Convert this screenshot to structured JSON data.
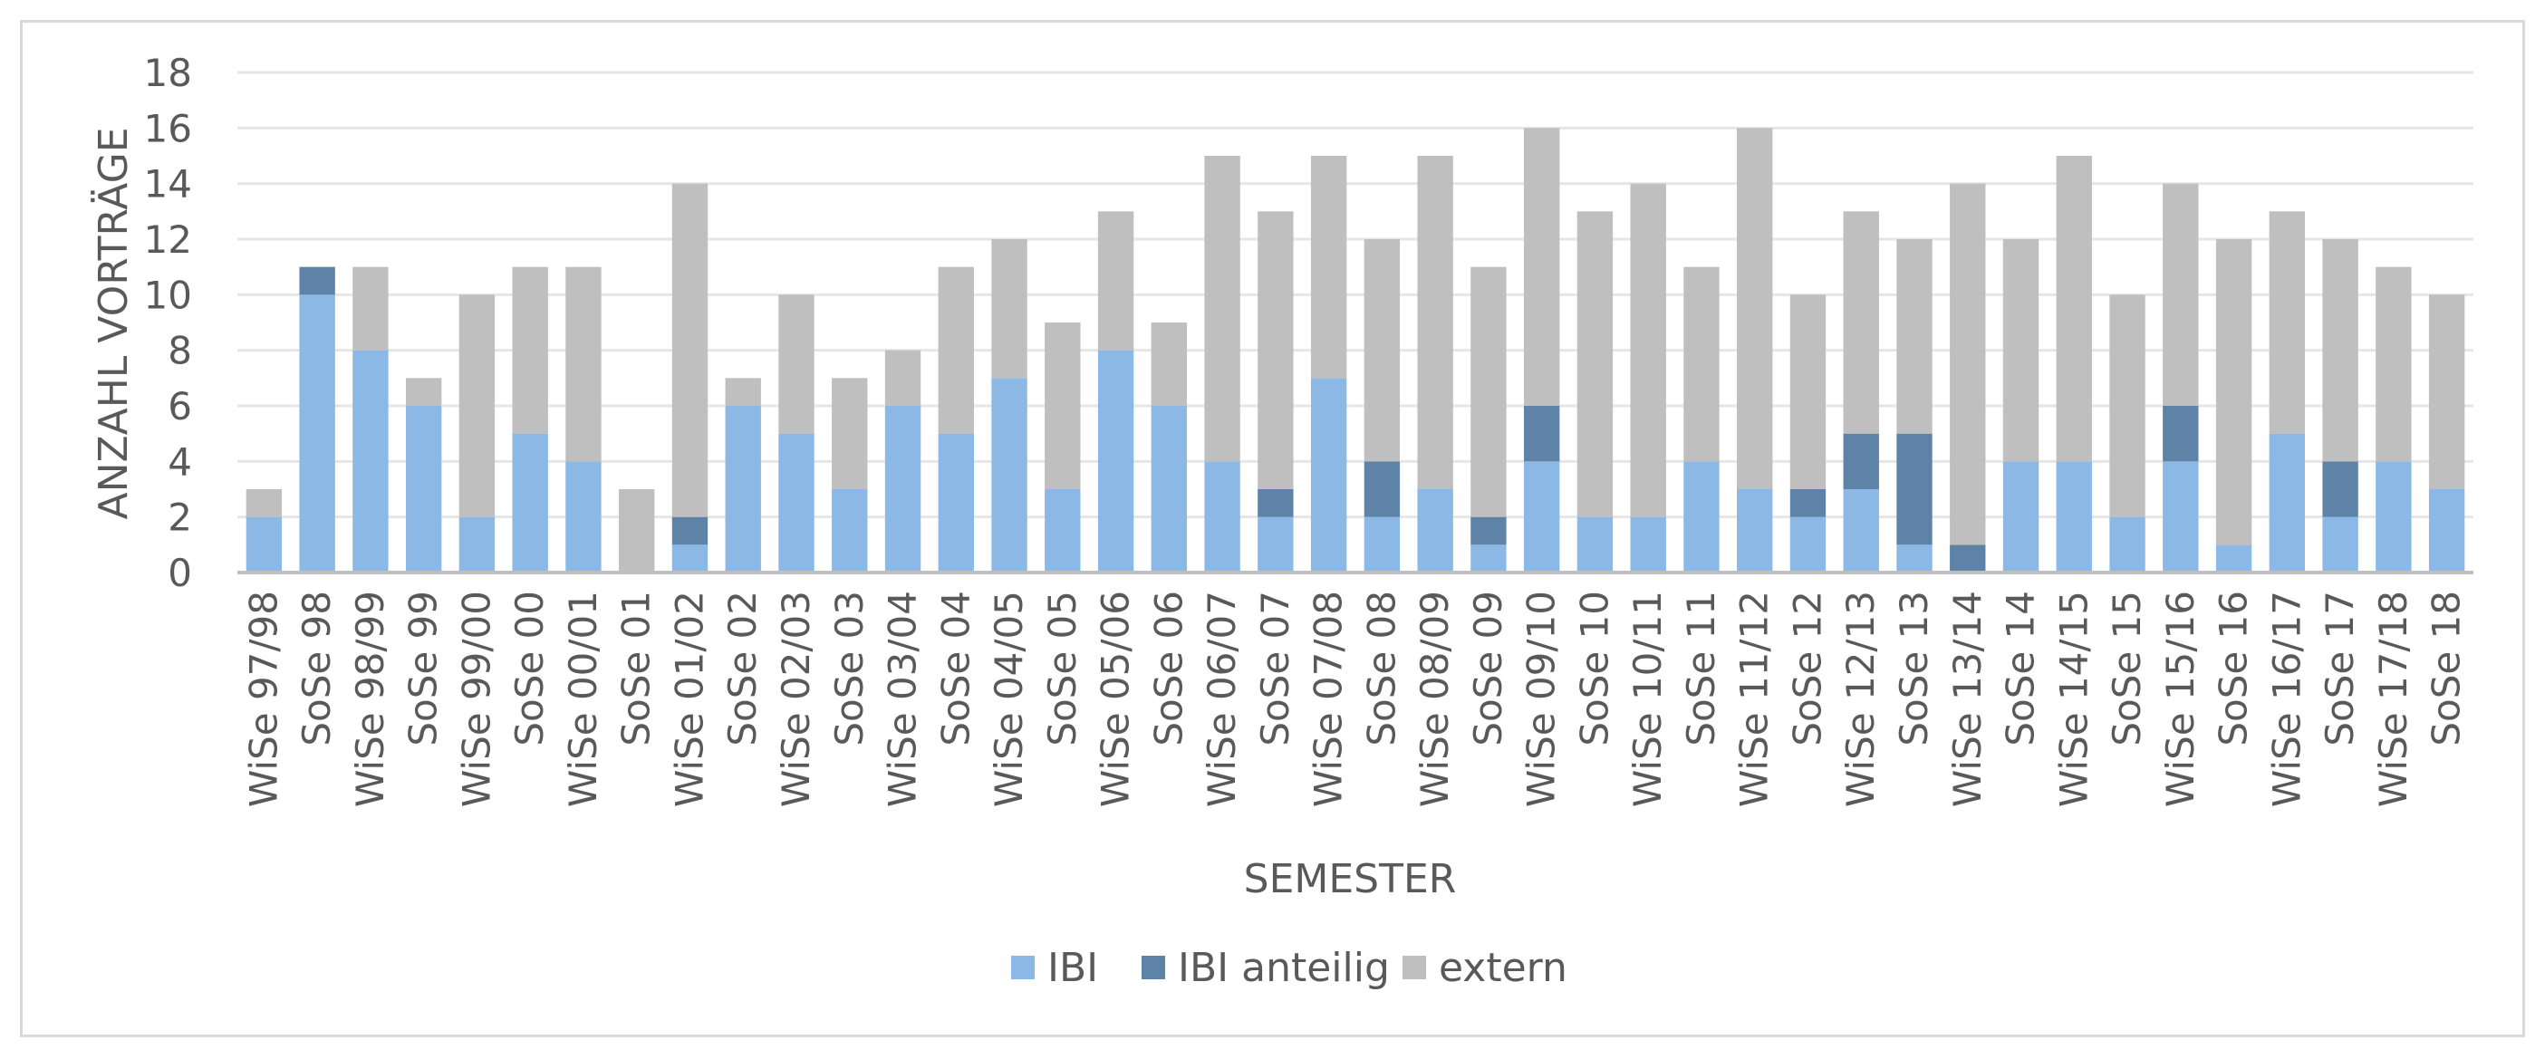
{
  "chart_data": {
    "type": "bar",
    "stacked": true,
    "title": "",
    "xlabel": "SEMESTER",
    "ylabel": "ANZAHL VORTRÄGE",
    "ylim": [
      0,
      18
    ],
    "yticks": [
      0,
      2,
      4,
      6,
      8,
      10,
      12,
      14,
      16,
      18
    ],
    "grid": true,
    "legend_position": "bottom",
    "categories": [
      "WiSe 97/98",
      "SoSe 98",
      "WiSe 98/99",
      "SoSe 99",
      "WiSe 99/00",
      "SoSe 00",
      "WiSe 00/01",
      "SoSe 01",
      "WiSe 01/02",
      "SoSe 02",
      "WiSe 02/03",
      "SoSe 03",
      "WiSe 03/04",
      "SoSe 04",
      "WiSe 04/05",
      "SoSe 05",
      "WiSe 05/06",
      "SoSe 06",
      "WiSe 06/07",
      "SoSe 07",
      "WiSe 07/08",
      "SoSe 08",
      "WiSe 08/09",
      "SoSe 09",
      "WiSe 09/10",
      "SoSe 10",
      "WiSe 10/11",
      "SoSe 11",
      "WiSe 11/12",
      "SoSe 12",
      "WiSe 12/13",
      "SoSe 13",
      "WiSe 13/14",
      "SoSe 14",
      "WiSe 14/15",
      "SoSe 15",
      "WiSe 15/16",
      "SoSe 16",
      "WiSe 16/17",
      "SoSe 17",
      "WiSe 17/18",
      "SoSe 18"
    ],
    "series": [
      {
        "name": "IBI",
        "color": "#8cb8e6",
        "values": [
          2,
          10,
          8,
          6,
          2,
          5,
          4,
          0,
          1,
          6,
          5,
          3,
          6,
          5,
          7,
          3,
          8,
          6,
          4,
          2,
          7,
          2,
          3,
          1,
          4,
          2,
          2,
          4,
          3,
          2,
          3,
          1,
          0,
          4,
          4,
          2,
          4,
          1,
          5,
          2,
          4,
          3
        ]
      },
      {
        "name": "IBI anteilig",
        "color": "#5f83a6",
        "values": [
          0,
          1,
          0,
          0,
          0,
          0,
          0,
          0,
          1,
          0,
          0,
          0,
          0,
          0,
          0,
          0,
          0,
          0,
          0,
          1,
          0,
          2,
          0,
          1,
          2,
          0,
          0,
          0,
          0,
          1,
          2,
          4,
          1,
          0,
          0,
          0,
          2,
          0,
          0,
          2,
          0,
          0
        ]
      },
      {
        "name": "extern",
        "color": "#bfbfbf",
        "values": [
          1,
          0,
          3,
          1,
          8,
          6,
          7,
          3,
          12,
          1,
          5,
          4,
          2,
          6,
          5,
          6,
          5,
          3,
          11,
          10,
          8,
          8,
          12,
          9,
          10,
          11,
          12,
          7,
          13,
          7,
          8,
          7,
          13,
          8,
          11,
          8,
          8,
          11,
          8,
          8,
          7,
          7
        ]
      }
    ]
  }
}
